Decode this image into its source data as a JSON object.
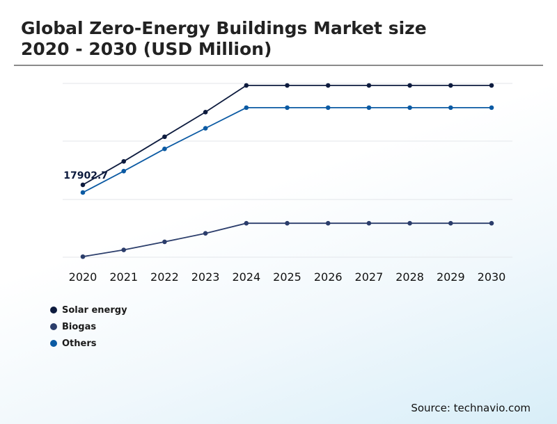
{
  "title_line1": "Global Zero-Energy Buildings Market size",
  "title_line2": "2020 - 2030 (USD Million)",
  "source": "Source: technavio.com",
  "colors": {
    "solar": "#0d1b3e",
    "biogas": "#2b3d6b",
    "others": "#0b5aa3"
  },
  "chart_data": {
    "type": "line",
    "title": "Global Zero-Energy Buildings Market size 2020 - 2030 (USD Million)",
    "x": [
      "2020",
      "2021",
      "2022",
      "2023",
      "2024",
      "2025",
      "2026",
      "2027",
      "2028",
      "2029",
      "2030"
    ],
    "series": [
      {
        "name": "Solar energy",
        "values": [
          17902.7,
          23700,
          29800,
          35900,
          42500,
          42500,
          42500,
          42500,
          42500,
          42500,
          42500
        ]
      },
      {
        "name": "Biogas",
        "values": [
          130,
          1800,
          3800,
          5900,
          8400,
          8400,
          8400,
          8400,
          8400,
          8400,
          8400
        ]
      },
      {
        "name": "Others",
        "values": [
          16000,
          21300,
          26800,
          31900,
          37000,
          37000,
          37000,
          37000,
          37000,
          37000,
          37000
        ]
      }
    ],
    "annotations": [
      {
        "series": "Solar energy",
        "x": "2020",
        "label": "17902.7"
      }
    ],
    "ylim": [
      0,
      43000
    ],
    "grid": true,
    "legend": "bottom-left"
  }
}
